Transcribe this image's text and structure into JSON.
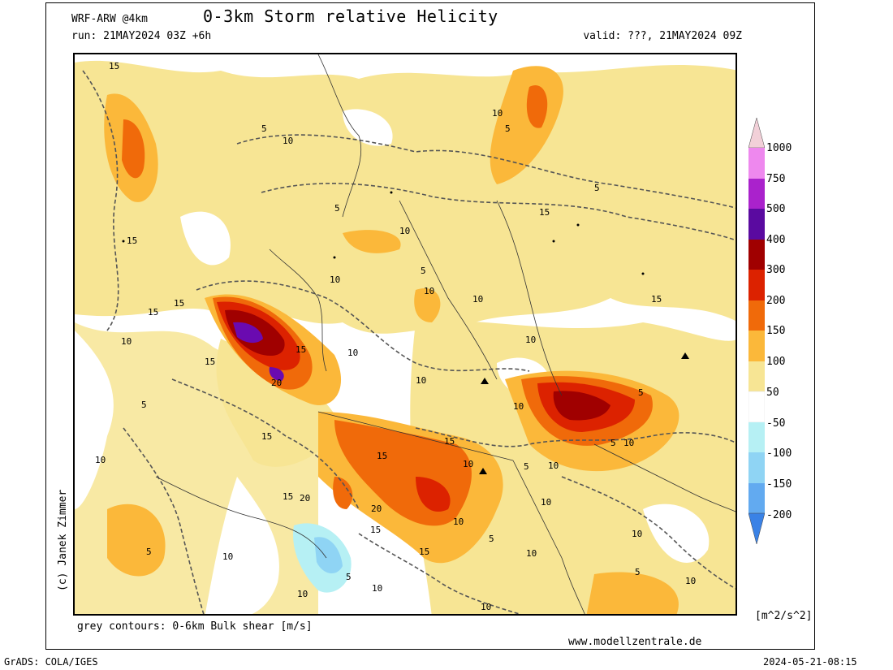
{
  "header": {
    "model": "WRF-ARW @4km",
    "title": "0-3km Storm relative Helicity",
    "run": "run: 21MAY2024 03Z +6h",
    "valid": "valid: ???, 21MAY2024 09Z"
  },
  "author": "(c) Janek Zimmer",
  "footer": {
    "contours_note": "grey contours: 0-6km Bulk shear [m/s]",
    "website": "www.modellzentrale.de",
    "grads": "GrADS: COLA/IGES",
    "timestamp": "2024-05-21-08:15"
  },
  "colorbar": {
    "units": "[m^2/s^2]",
    "levels": [
      "1000",
      "750",
      "500",
      "400",
      "300",
      "200",
      "150",
      "100",
      "50",
      "-50",
      "-100",
      "-150",
      "-200"
    ],
    "colors": [
      "#f2d0d8",
      "#ee88ee",
      "#aa22cc",
      "#5a0aa0",
      "#a00000",
      "#dc2200",
      "#f06a0a",
      "#fbb83a",
      "#f7e594",
      "#ffffff",
      "#b6f0f4",
      "#8fd4f4",
      "#62aaf0",
      "#3a82e6"
    ]
  },
  "contour_labels": [
    "5",
    "10",
    "15",
    "20"
  ],
  "colors": {
    "land_yellow": "#f7e594",
    "orange": "#fbb83a",
    "dark_orange": "#f06a0a",
    "red": "#dc2200",
    "dark_red": "#a00000",
    "purple": "#6a0ab0",
    "light_blue": "#b6f0f4",
    "blue": "#8fd4f4",
    "contour_grey": "#555555"
  }
}
